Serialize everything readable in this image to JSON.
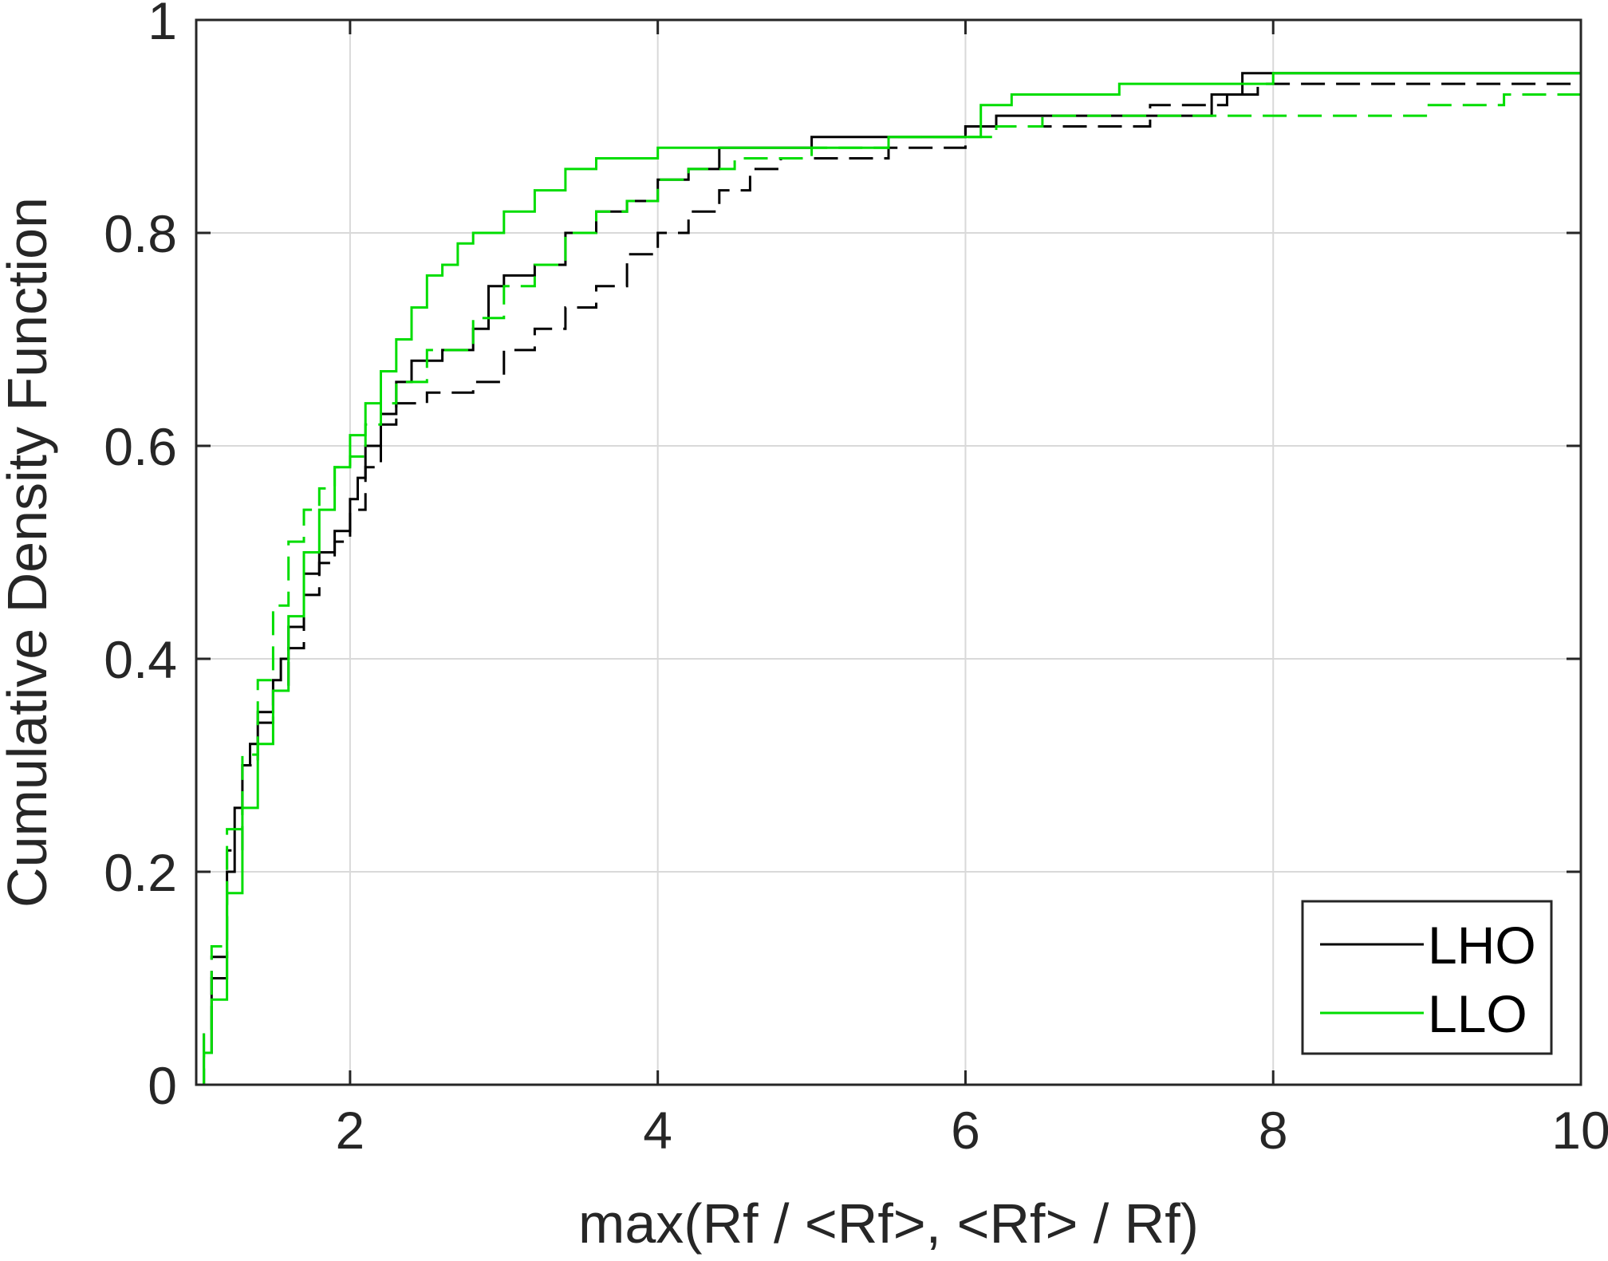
{
  "chart_data": {
    "type": "line",
    "xlabel": "max(Rf / <Rf>, <Rf> / Rf)",
    "ylabel": "Cumulative Density Function",
    "xlim": [
      1,
      10
    ],
    "ylim": [
      0,
      1
    ],
    "x_ticks": [
      2,
      4,
      6,
      8,
      10
    ],
    "x_tick_labels": [
      "2",
      "4",
      "6",
      "8",
      "10"
    ],
    "y_ticks": [
      0,
      0.2,
      0.4,
      0.6,
      0.8,
      1
    ],
    "y_tick_labels": [
      "0",
      "0.2",
      "0.4",
      "0.6",
      "0.8",
      "1"
    ],
    "grid": true,
    "legend_position": "bottom-right",
    "legend": [
      {
        "label": "LHO",
        "color": "#000000"
      },
      {
        "label": "LLO",
        "color": "#00dd00"
      }
    ],
    "series": [
      {
        "name": "LHO",
        "color": "#000000",
        "dash": "solid",
        "points": [
          [
            1,
            0
          ],
          [
            1.05,
            0.03
          ],
          [
            1.1,
            0.1
          ],
          [
            1.2,
            0.2
          ],
          [
            1.25,
            0.26
          ],
          [
            1.3,
            0.3
          ],
          [
            1.35,
            0.32
          ],
          [
            1.4,
            0.35
          ],
          [
            1.5,
            0.38
          ],
          [
            1.55,
            0.4
          ],
          [
            1.6,
            0.43
          ],
          [
            1.7,
            0.48
          ],
          [
            1.8,
            0.5
          ],
          [
            1.9,
            0.52
          ],
          [
            2.0,
            0.55
          ],
          [
            2.05,
            0.57
          ],
          [
            2.1,
            0.6
          ],
          [
            2.2,
            0.63
          ],
          [
            2.3,
            0.66
          ],
          [
            2.4,
            0.68
          ],
          [
            2.6,
            0.69
          ],
          [
            2.8,
            0.71
          ],
          [
            2.9,
            0.75
          ],
          [
            3.0,
            0.76
          ],
          [
            3.2,
            0.77
          ],
          [
            3.4,
            0.8
          ],
          [
            3.6,
            0.82
          ],
          [
            3.8,
            0.83
          ],
          [
            4.0,
            0.85
          ],
          [
            4.2,
            0.86
          ],
          [
            4.4,
            0.88
          ],
          [
            5.0,
            0.89
          ],
          [
            5.5,
            0.89
          ],
          [
            6.0,
            0.9
          ],
          [
            6.2,
            0.91
          ],
          [
            7.5,
            0.91
          ],
          [
            7.6,
            0.93
          ],
          [
            7.8,
            0.95
          ],
          [
            10,
            0.95
          ]
        ]
      },
      {
        "name": "",
        "color": "#000000",
        "dash": "dashed",
        "points": [
          [
            1,
            0
          ],
          [
            1.05,
            0.05
          ],
          [
            1.1,
            0.12
          ],
          [
            1.2,
            0.22
          ],
          [
            1.3,
            0.3
          ],
          [
            1.4,
            0.34
          ],
          [
            1.5,
            0.37
          ],
          [
            1.6,
            0.41
          ],
          [
            1.7,
            0.46
          ],
          [
            1.8,
            0.49
          ],
          [
            1.9,
            0.51
          ],
          [
            2.0,
            0.54
          ],
          [
            2.1,
            0.58
          ],
          [
            2.2,
            0.62
          ],
          [
            2.3,
            0.64
          ],
          [
            2.5,
            0.65
          ],
          [
            2.8,
            0.66
          ],
          [
            3.0,
            0.69
          ],
          [
            3.2,
            0.71
          ],
          [
            3.4,
            0.73
          ],
          [
            3.6,
            0.75
          ],
          [
            3.8,
            0.78
          ],
          [
            4.0,
            0.8
          ],
          [
            4.2,
            0.82
          ],
          [
            4.4,
            0.84
          ],
          [
            4.6,
            0.86
          ],
          [
            4.8,
            0.87
          ],
          [
            5.0,
            0.87
          ],
          [
            5.5,
            0.88
          ],
          [
            6.0,
            0.9
          ],
          [
            6.5,
            0.9
          ],
          [
            7.0,
            0.9
          ],
          [
            7.2,
            0.92
          ],
          [
            7.5,
            0.92
          ],
          [
            7.7,
            0.93
          ],
          [
            7.9,
            0.94
          ],
          [
            10,
            0.94
          ]
        ]
      },
      {
        "name": "LLO",
        "color": "#00dd00",
        "dash": "solid",
        "points": [
          [
            1,
            0
          ],
          [
            1.05,
            0.03
          ],
          [
            1.1,
            0.08
          ],
          [
            1.2,
            0.18
          ],
          [
            1.3,
            0.26
          ],
          [
            1.4,
            0.32
          ],
          [
            1.5,
            0.37
          ],
          [
            1.6,
            0.44
          ],
          [
            1.7,
            0.5
          ],
          [
            1.8,
            0.54
          ],
          [
            1.9,
            0.58
          ],
          [
            2.0,
            0.61
          ],
          [
            2.1,
            0.64
          ],
          [
            2.2,
            0.67
          ],
          [
            2.3,
            0.7
          ],
          [
            2.4,
            0.73
          ],
          [
            2.5,
            0.76
          ],
          [
            2.6,
            0.77
          ],
          [
            2.7,
            0.79
          ],
          [
            2.8,
            0.8
          ],
          [
            3.0,
            0.82
          ],
          [
            3.2,
            0.84
          ],
          [
            3.4,
            0.86
          ],
          [
            3.6,
            0.87
          ],
          [
            4.0,
            0.88
          ],
          [
            4.5,
            0.88
          ],
          [
            5.0,
            0.88
          ],
          [
            5.5,
            0.89
          ],
          [
            6.0,
            0.89
          ],
          [
            6.1,
            0.92
          ],
          [
            6.3,
            0.93
          ],
          [
            7.0,
            0.94
          ],
          [
            7.5,
            0.94
          ],
          [
            8.0,
            0.95
          ],
          [
            10,
            0.95
          ]
        ]
      },
      {
        "name": "",
        "color": "#00dd00",
        "dash": "dashed",
        "points": [
          [
            1,
            0
          ],
          [
            1.05,
            0.05
          ],
          [
            1.1,
            0.13
          ],
          [
            1.2,
            0.24
          ],
          [
            1.3,
            0.31
          ],
          [
            1.4,
            0.38
          ],
          [
            1.5,
            0.45
          ],
          [
            1.6,
            0.51
          ],
          [
            1.7,
            0.54
          ],
          [
            1.8,
            0.56
          ],
          [
            1.9,
            0.58
          ],
          [
            2.0,
            0.59
          ],
          [
            2.1,
            0.62
          ],
          [
            2.2,
            0.64
          ],
          [
            2.3,
            0.66
          ],
          [
            2.5,
            0.69
          ],
          [
            2.8,
            0.72
          ],
          [
            3.0,
            0.75
          ],
          [
            3.2,
            0.77
          ],
          [
            3.4,
            0.8
          ],
          [
            3.6,
            0.82
          ],
          [
            3.8,
            0.83
          ],
          [
            4.0,
            0.85
          ],
          [
            4.2,
            0.86
          ],
          [
            4.5,
            0.87
          ],
          [
            5.0,
            0.88
          ],
          [
            5.5,
            0.89
          ],
          [
            6.0,
            0.89
          ],
          [
            6.2,
            0.9
          ],
          [
            6.5,
            0.91
          ],
          [
            7.0,
            0.91
          ],
          [
            8.0,
            0.91
          ],
          [
            9.0,
            0.92
          ],
          [
            9.5,
            0.93
          ],
          [
            10,
            0.93
          ]
        ]
      }
    ]
  }
}
